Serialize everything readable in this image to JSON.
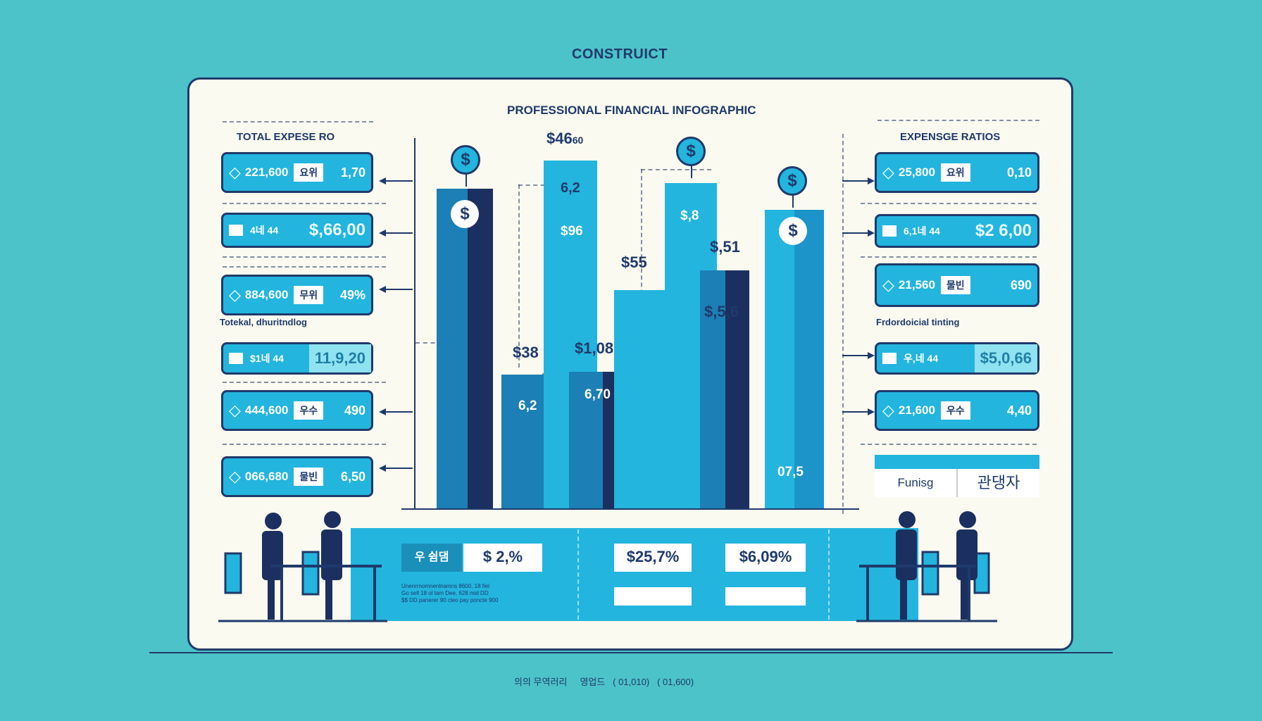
{
  "page": {
    "top_title": "CONSTRUICT",
    "board_title": "PROFESSIONAL FINANCIAL INFOGRAPHIC",
    "footer": [
      "의의 무역러리",
      "영업드",
      "( 01,010)",
      "( 01,600)"
    ]
  },
  "left": {
    "heading": "TOTAL EXPESE RO",
    "subheading": "Totekal, dhuritndlog",
    "cards": [
      {
        "type": "gem",
        "label": "221,600",
        "chip": "요위",
        "value": "1,70"
      },
      {
        "type": "square",
        "label": "4네 44",
        "value": "$,66,00"
      },
      {
        "type": "gem",
        "label": "884,600",
        "chip": "무위",
        "value": "49%"
      },
      {
        "type": "square",
        "label": "$1네 44",
        "value": "11,9,20"
      },
      {
        "type": "gem",
        "label": "444,600",
        "chip": "우수",
        "value": "490"
      },
      {
        "type": "gem",
        "label": "066,680",
        "chip": "물빈",
        "value": "6,50"
      }
    ]
  },
  "right": {
    "heading": "EXPENSGE RATIOS",
    "subheading": "Frdordoicial tinting",
    "cards": [
      {
        "type": "gem",
        "label": "25,800",
        "chip": "요위",
        "value": "0,10"
      },
      {
        "type": "square",
        "label": "6,1네 44",
        "value": "$2 6,00"
      },
      {
        "type": "gem",
        "label": "21,560",
        "chip": "물빈",
        "value": "690"
      },
      {
        "type": "square",
        "label": "우,네 44",
        "value": "$5,0,66"
      },
      {
        "type": "gem",
        "label": "21,600",
        "chip": "우수",
        "value": "4,40"
      }
    ],
    "table": {
      "left": "Funisg",
      "right": "관댕자"
    }
  },
  "chart_labels": {
    "top": "$46",
    "top_small": "60",
    "b2_a": "6,2",
    "b2_b": "$96",
    "b3": "$38",
    "b3_in": "6,2",
    "b4": "$1,08",
    "b4_in": "6,70",
    "b5": "$55",
    "b6": "$,8",
    "b7": "$,51",
    "b7_in": "$,5,6",
    "b8_in": "07,5"
  },
  "bottom_panel": {
    "dark_chip": "우 쉼댐",
    "chips": [
      "$ 2,%",
      "$25,7%",
      "$6,09%"
    ],
    "fine_print": [
      "Unenrrnomnenlnamns 8600, 18 fiel",
      "Go sell 18 ol tam Dee, 628 mid DD",
      "$$ DD panerer 90 cleo pay poncte 900"
    ]
  },
  "colors": {
    "background": "#4cc3c9",
    "board": "#fbfaf0",
    "navy": "#1f3a6b",
    "cyan": "#23b5de",
    "mid_blue": "#1c7fb5",
    "dark_navy": "#1b3060"
  },
  "icons": [
    "dollar-coin-icon",
    "diamond-icon",
    "person-icon",
    "desk-icon",
    "chair-icon"
  ]
}
